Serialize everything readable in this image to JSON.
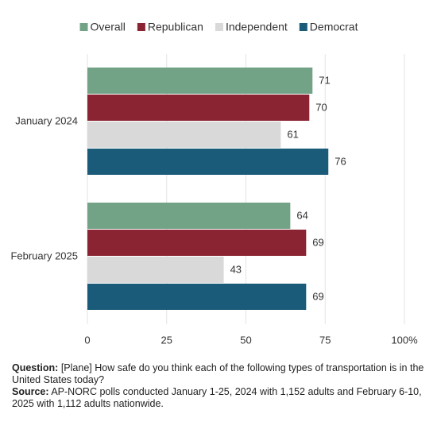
{
  "chart_data": {
    "type": "bar",
    "orientation": "horizontal",
    "categories": [
      "January 2024",
      "February 2025"
    ],
    "series": [
      {
        "name": "Overall",
        "color": "#73a386",
        "values": [
          71,
          64
        ]
      },
      {
        "name": "Republican",
        "color": "#8a2432",
        "values": [
          70,
          69
        ]
      },
      {
        "name": "Independent",
        "color": "#d9d9d9",
        "values": [
          61,
          43
        ]
      },
      {
        "name": "Democrat",
        "color": "#1b5b7a",
        "values": [
          76,
          69
        ]
      }
    ],
    "xlim": [
      0,
      100
    ],
    "xticks": [
      0,
      25,
      50,
      75,
      {
        "value": 100,
        "label": "100%"
      }
    ],
    "grid": true,
    "legend": "top"
  },
  "notes": {
    "question_label": "Question:",
    "question": "[Plane] How safe do you think each of the following types of transportation is in the United States today?",
    "source_label": "Source:",
    "source": "AP-NORC polls conducted January 1-25, 2024 with 1,152 adults and February 6-10, 2025 with 1,112 adults nationwide."
  }
}
